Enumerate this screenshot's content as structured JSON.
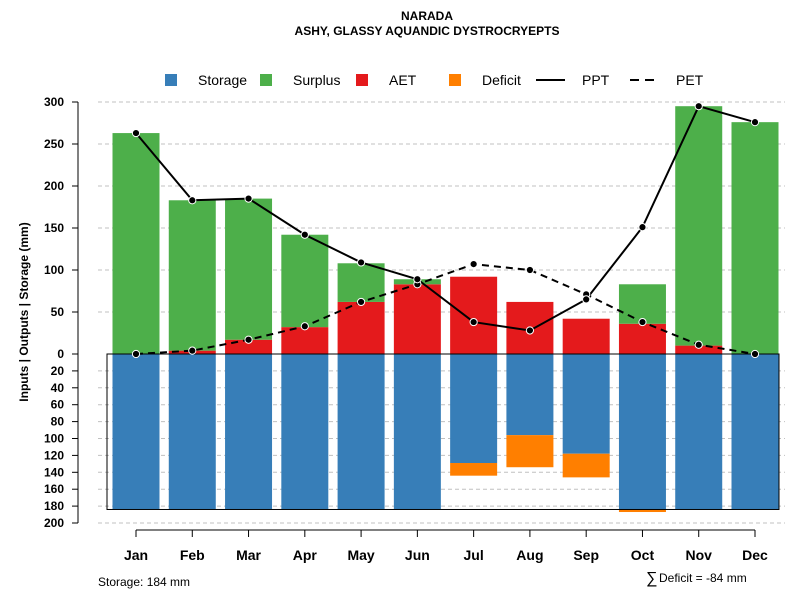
{
  "chart_data": {
    "type": "bar",
    "title": "NARADA",
    "subtitle": "ASHY, GLASSY AQUANDIC DYSTROCRYEPTS",
    "ylabel": "Inputs | Outputs | Storage    (mm)",
    "categories": [
      "Jan",
      "Feb",
      "Mar",
      "Apr",
      "May",
      "Jun",
      "Jul",
      "Aug",
      "Sep",
      "Oct",
      "Nov",
      "Dec"
    ],
    "upper_ylim": [
      0,
      300
    ],
    "lower_ylim": [
      0,
      200
    ],
    "upper_ticks": [
      "300",
      "250",
      "200",
      "150",
      "100",
      "50",
      "0"
    ],
    "lower_ticks": [
      "20",
      "40",
      "60",
      "80",
      "100",
      "120",
      "140",
      "160",
      "180",
      "200"
    ],
    "legend": [
      {
        "label": "Storage",
        "kind": "square",
        "color": "#377eb8"
      },
      {
        "label": "Surplus",
        "kind": "square",
        "color": "#4daf4a"
      },
      {
        "label": "AET",
        "kind": "square",
        "color": "#e41a1c"
      },
      {
        "label": "Deficit",
        "kind": "square",
        "color": "#ff7f00"
      },
      {
        "label": "PPT",
        "kind": "solid-line",
        "color": "#000000"
      },
      {
        "label": "PET",
        "kind": "dashed-line",
        "color": "#000000"
      }
    ],
    "series": [
      {
        "name": "AET",
        "color": "#e41a1c",
        "values": [
          0,
          4,
          17,
          32,
          62,
          83,
          92,
          62,
          42,
          36,
          10,
          0
        ]
      },
      {
        "name": "Surplus",
        "color": "#4daf4a",
        "values": [
          263,
          179,
          168,
          110,
          46,
          6,
          0,
          0,
          0,
          47,
          285,
          276
        ]
      },
      {
        "name": "PPT",
        "color": "#000000",
        "values": [
          263,
          183,
          185,
          142,
          109,
          89,
          38,
          28,
          65,
          151,
          295,
          276
        ]
      },
      {
        "name": "PET",
        "color": "#000000",
        "values": [
          0,
          4,
          17,
          33,
          62,
          83,
          107,
          100,
          71,
          38,
          11,
          0
        ]
      },
      {
        "name": "Storage",
        "color": "#377eb8",
        "values": [
          184,
          184,
          184,
          184,
          184,
          184,
          129,
          96,
          118,
          184,
          184,
          184
        ]
      },
      {
        "name": "Deficit",
        "color": "#ff7f00",
        "values": [
          0,
          0,
          0,
          0,
          0,
          0,
          15,
          38,
          28,
          3,
          0,
          0
        ]
      }
    ]
  },
  "footer": {
    "storage_note": "Storage: 184 mm",
    "deficit_symbol": "∑",
    "deficit_note": "Deficit = -84 mm"
  }
}
